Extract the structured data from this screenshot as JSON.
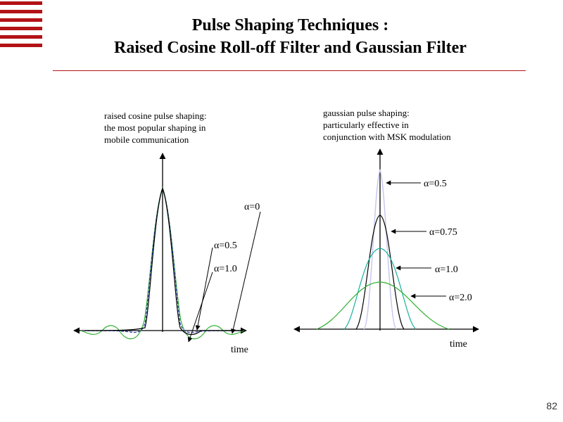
{
  "title": {
    "line1": "Pulse Shaping Techniques :",
    "line2": "Raised Cosine Roll-off Filter and Gaussian Filter"
  },
  "left_panel": {
    "caption": [
      "raised cosine pulse shaping:",
      "the most popular shaping in",
      "mobile communication"
    ],
    "axis_label": "time",
    "curve_labels": [
      "α=0",
      "α=0.5",
      "α=1.0"
    ]
  },
  "right_panel": {
    "caption": [
      "gaussian pulse shaping:",
      "particularly effective in",
      "conjunction with MSK modulation"
    ],
    "axis_label": "time",
    "curve_labels": [
      "α=0.5",
      "α=0.75",
      "α=1.0",
      "α=2.0"
    ]
  },
  "page_number": "82",
  "colors": {
    "accent": "#b31217",
    "curve_black": "#000000",
    "curve_blue": "#2b3aa8",
    "curve_green": "#2fb02f",
    "curve_lavender": "#c8c8f0",
    "curve_teal": "#16b0a0"
  }
}
